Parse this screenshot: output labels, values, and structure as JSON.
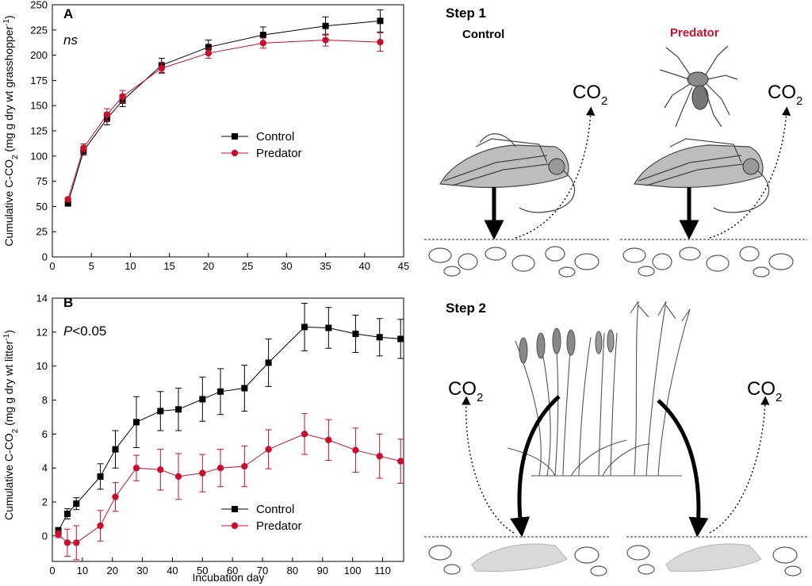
{
  "colors": {
    "control": "#000000",
    "predator": "#c8102e",
    "illustration": "#555555"
  },
  "chart_data": [
    {
      "panel": "A",
      "type": "line",
      "stat_text": "ns",
      "xlabel": "",
      "ylabel": "Cumulative C-CO2 (mg g dry wt grasshopper-1)",
      "ylabel_parts": {
        "pre": "Cumulative C-CO",
        "sub": "2",
        "mid": " (mg g dry wt grasshopper",
        "sup": "-1",
        "post": ")"
      },
      "xlim": [
        0,
        45
      ],
      "ylim": [
        0,
        250
      ],
      "xticks": [
        0,
        5,
        10,
        15,
        20,
        25,
        30,
        35,
        40,
        45
      ],
      "yticks": [
        0,
        25,
        50,
        75,
        100,
        125,
        150,
        175,
        200,
        225,
        250
      ],
      "legend_position": "center-right",
      "series": [
        {
          "name": "Control",
          "marker": "square",
          "x": [
            2,
            4,
            7,
            9,
            14,
            20,
            27,
            35,
            42
          ],
          "y": [
            53,
            105,
            137,
            155,
            190,
            208,
            220,
            229,
            234
          ],
          "err": [
            2,
            4,
            6,
            6,
            7,
            7,
            8,
            9,
            11
          ]
        },
        {
          "name": "Predator",
          "marker": "circle",
          "x": [
            2,
            4,
            7,
            9,
            14,
            20,
            27,
            35,
            42
          ],
          "y": [
            57,
            108,
            141,
            159,
            187,
            202,
            212,
            215,
            213
          ],
          "err": [
            2,
            4,
            6,
            6,
            5,
            5,
            5,
            6,
            9
          ]
        }
      ]
    },
    {
      "panel": "B",
      "type": "line",
      "stat_text": {
        "p": "P",
        "rest": "<0.05"
      },
      "xlabel": "Incubation day",
      "ylabel": "Cumulative C-CO2 (mg g dry wt litter-1)",
      "ylabel_parts": {
        "pre": "Cumulative C-CO",
        "sub": "2",
        "mid": " (mg g dry wt litter",
        "sup": "-1",
        "post": ")"
      },
      "xlim": [
        0,
        117
      ],
      "ylim": [
        -1.5,
        14
      ],
      "xticks": [
        0,
        10,
        20,
        30,
        40,
        50,
        60,
        70,
        80,
        90,
        100,
        110
      ],
      "yticks": [
        0,
        2,
        4,
        6,
        8,
        10,
        12,
        14
      ],
      "legend_position": "bottom-center",
      "series": [
        {
          "name": "Control",
          "marker": "square",
          "x": [
            2,
            5,
            8,
            16,
            21,
            28,
            36,
            42,
            50,
            56,
            64,
            72,
            84,
            92,
            101,
            109,
            116
          ],
          "y": [
            0.3,
            1.3,
            1.9,
            3.5,
            5.1,
            6.7,
            7.35,
            7.45,
            8.05,
            8.5,
            8.7,
            10.2,
            12.3,
            12.25,
            11.9,
            11.7,
            11.6
          ],
          "err": [
            0.2,
            0.3,
            0.35,
            0.75,
            1.1,
            1.5,
            1.15,
            1.25,
            1.3,
            1.35,
            1.35,
            1.4,
            1.4,
            1.2,
            1.1,
            1.1,
            1.15
          ]
        },
        {
          "name": "Predator",
          "marker": "circle",
          "x": [
            2,
            5,
            8,
            16,
            21,
            28,
            36,
            42,
            50,
            56,
            64,
            72,
            84,
            92,
            101,
            109,
            116
          ],
          "y": [
            0.1,
            -0.4,
            -0.4,
            0.6,
            2.3,
            4.0,
            3.9,
            3.5,
            3.7,
            4.0,
            4.1,
            5.1,
            6.0,
            5.65,
            5.05,
            4.7,
            4.4
          ],
          "err": [
            0.2,
            0.8,
            1.0,
            0.9,
            0.85,
            0.75,
            1.2,
            1.35,
            1.1,
            1.1,
            1.2,
            1.15,
            1.2,
            1.2,
            1.3,
            1.3,
            1.3
          ]
        }
      ]
    }
  ],
  "illustration": {
    "step1_label": "Step 1",
    "step2_label": "Step 2",
    "control_label": "Control",
    "predator_label": "Predator",
    "co2_main": "CO",
    "co2_sub": "2"
  }
}
